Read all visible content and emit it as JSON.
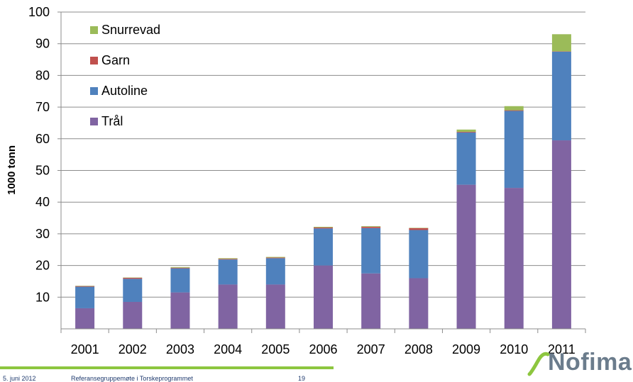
{
  "chart_data": {
    "type": "bar",
    "stacked": true,
    "categories": [
      "2001",
      "2002",
      "2003",
      "2004",
      "2005",
      "2006",
      "2007",
      "2008",
      "2009",
      "2010",
      "2011"
    ],
    "series": [
      {
        "name": "Trål",
        "color": "#8064a2",
        "values": [
          6.5,
          8.5,
          11.5,
          14,
          14,
          20,
          17.5,
          16,
          45.5,
          44.5,
          59.5
        ]
      },
      {
        "name": "Autoline",
        "color": "#4f81bd",
        "values": [
          6.8,
          7.3,
          7.6,
          7.9,
          8.3,
          11.7,
          14.3,
          15.2,
          16.5,
          24.3,
          28
        ]
      },
      {
        "name": "Garn",
        "color": "#c0504d",
        "values": [
          0.2,
          0.3,
          0.2,
          0.2,
          0.2,
          0.3,
          0.4,
          0.6,
          0.2,
          0.2,
          0.1
        ]
      },
      {
        "name": "Snurrevad",
        "color": "#9bbb59",
        "values": [
          0.1,
          0.1,
          0.2,
          0.2,
          0.2,
          0.2,
          0.2,
          0.1,
          0.7,
          1.3,
          5.4
        ]
      }
    ],
    "legend_order": [
      "Snurrevad",
      "Garn",
      "Autoline",
      "Trål"
    ],
    "legend_position": "top-left",
    "ylabel": "1000 tonn",
    "xlabel": "",
    "title": "",
    "ylim": [
      0,
      100
    ],
    "yticks": [
      10,
      20,
      30,
      40,
      50,
      60,
      70,
      80,
      90,
      100
    ],
    "grid": true
  },
  "footer": {
    "date": "5. juni 2012",
    "title": "Referansegruppemøte i Torskeprogrammet",
    "page": "19"
  },
  "logo": {
    "text": "Nofima"
  }
}
